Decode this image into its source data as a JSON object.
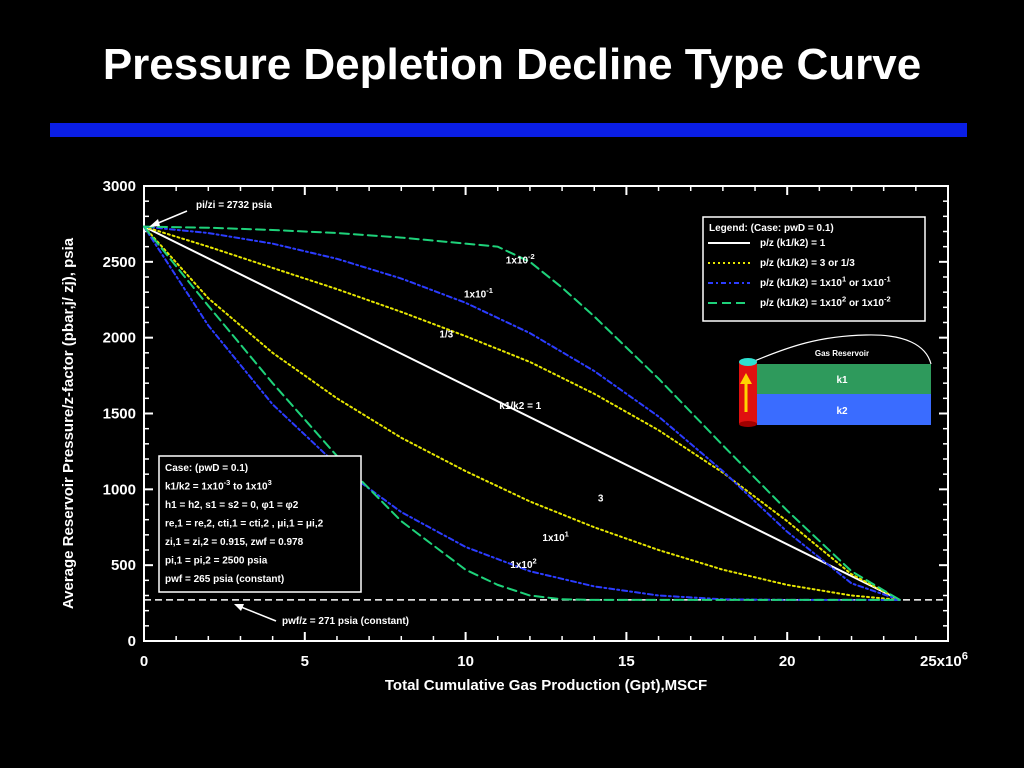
{
  "slide": {
    "title": "Pressure Depletion Decline Type Curve",
    "title_rule_color": "#0a1ee6"
  },
  "chart_data": {
    "type": "line",
    "xlabel": "Total Cumulative Gas Production (Gpt),MSCF",
    "ylabel": "Average Reservoir Pressure/z-factor (pbar,j/ zj), psia",
    "xlim": [
      0,
      25
    ],
    "ylim": [
      0,
      3000
    ],
    "x_ticks": [
      "0",
      "5",
      "10",
      "15",
      "20",
      "25x10^6"
    ],
    "y_ticks": [
      "0",
      "500",
      "1000",
      "1500",
      "2000",
      "2500",
      "3000"
    ],
    "grid": false,
    "initial_annotation": "pi/zi = 2732 psia",
    "pwf_annotation": "pwf/z = 271 psia (constant)",
    "pwf_line_value": 271,
    "legend": {
      "title": "Legend:  (Case: pwD = 0.1)",
      "entries": [
        {
          "label": "p/z (k1/k2) = 1",
          "color": "#ffffff",
          "style": "solid"
        },
        {
          "label": "p/z (k1/k2) = 3 or 1/3",
          "color": "#e6e600",
          "style": "dotted"
        },
        {
          "label": "p/z (k1/k2) = 1x10^1 or 1x10^-1",
          "color": "#2b3cff",
          "style": "dashdot"
        },
        {
          "label": "p/z (k1/k2) = 1x10^2 or 1x10^-2",
          "color": "#1ed27a",
          "style": "dashed"
        }
      ],
      "placement": "top-right"
    },
    "case_box": [
      "Case: (pwD = 0.1)",
      "k1/k2 = 1x10^-3 to 1x10^3",
      "h1 = h2, s1 = s2 = 0, φ1 = φ2",
      "re,1 = re,2, cti,1 = cti,2 , μi,1 = μi,2",
      "zi,1 = zi,2 = 0.915, zwf = 0.978",
      "pi,1 = pi,2 = 2500 psia",
      "pwf = 265 psia (constant)"
    ],
    "series": [
      {
        "name": "1",
        "color": "#ffffff",
        "style": "solid",
        "label": "k1/k2 = 1",
        "x": [
          0,
          23.5
        ],
        "y": [
          2732,
          271
        ]
      },
      {
        "name": "1/3",
        "color": "#e6e600",
        "style": "dotted",
        "label": "1/3",
        "x": [
          0,
          2,
          4,
          6,
          8,
          10,
          12,
          14,
          16,
          18,
          20,
          22,
          23.5
        ],
        "y": [
          2732,
          2600,
          2460,
          2320,
          2170,
          2010,
          1840,
          1630,
          1390,
          1110,
          790,
          440,
          271
        ]
      },
      {
        "name": "3",
        "color": "#e6e600",
        "style": "dotted",
        "label": "3",
        "x": [
          0,
          2,
          4,
          6,
          8,
          10,
          12,
          14,
          16,
          18,
          20,
          22,
          23.5
        ],
        "y": [
          2732,
          2260,
          1900,
          1600,
          1340,
          1120,
          920,
          750,
          600,
          470,
          370,
          300,
          271
        ]
      },
      {
        "name": "1x10^-1",
        "color": "#2b3cff",
        "style": "dashdot",
        "label": "1x10^-1",
        "x": [
          0,
          2,
          4,
          6,
          8,
          10,
          12,
          14,
          16,
          18,
          20,
          22,
          23.5
        ],
        "y": [
          2732,
          2690,
          2620,
          2520,
          2390,
          2230,
          2030,
          1780,
          1480,
          1120,
          720,
          380,
          271
        ]
      },
      {
        "name": "1x10^1",
        "color": "#2b3cff",
        "style": "dashdot",
        "label": "1x10^1",
        "x": [
          0,
          2,
          4,
          6,
          8,
          10,
          12,
          14,
          16,
          18,
          20,
          22,
          23.5
        ],
        "y": [
          2732,
          2080,
          1560,
          1160,
          850,
          620,
          460,
          360,
          300,
          275,
          271,
          271,
          271
        ]
      },
      {
        "name": "1x10^-2",
        "color": "#1ed27a",
        "style": "dashed",
        "label": "1x10^-2",
        "x": [
          0,
          2,
          4,
          6,
          8,
          10,
          11,
          12,
          13,
          14,
          16,
          18,
          20,
          22,
          23.5
        ],
        "y": [
          2732,
          2725,
          2710,
          2690,
          2660,
          2620,
          2600,
          2500,
          2330,
          2140,
          1730,
          1290,
          860,
          460,
          271
        ]
      },
      {
        "name": "1x10^2",
        "color": "#1ed27a",
        "style": "dashed",
        "label": "1x10^2",
        "x": [
          0,
          2,
          4,
          6,
          8,
          10,
          11,
          12,
          13,
          14,
          16,
          18,
          20,
          22,
          23.5
        ],
        "y": [
          2732,
          2210,
          1700,
          1220,
          790,
          470,
          370,
          300,
          275,
          271,
          271,
          271,
          271,
          271,
          271
        ]
      }
    ],
    "curve_labels": [
      {
        "text": "1x10^-2",
        "x": 11.7,
        "y": 2490
      },
      {
        "text": "1x10^-1",
        "x": 10.4,
        "y": 2265
      },
      {
        "text": "1/3",
        "x": 9.4,
        "y": 2000
      },
      {
        "text": "k1/k2 = 1",
        "x": 11.7,
        "y": 1530
      },
      {
        "text": "3",
        "x": 14.2,
        "y": 920
      },
      {
        "text": "1x10^1",
        "x": 12.8,
        "y": 660
      },
      {
        "text": "1x10^2",
        "x": 11.8,
        "y": 480
      }
    ],
    "schematic": {
      "title": "Gas Reservoir",
      "layer1": "k1",
      "layer2": "k2",
      "layer1_color": "#2e9a5c",
      "layer2_color": "#3a6cff",
      "well_color": "#e01010",
      "arrow_color": "#ffd200"
    }
  }
}
